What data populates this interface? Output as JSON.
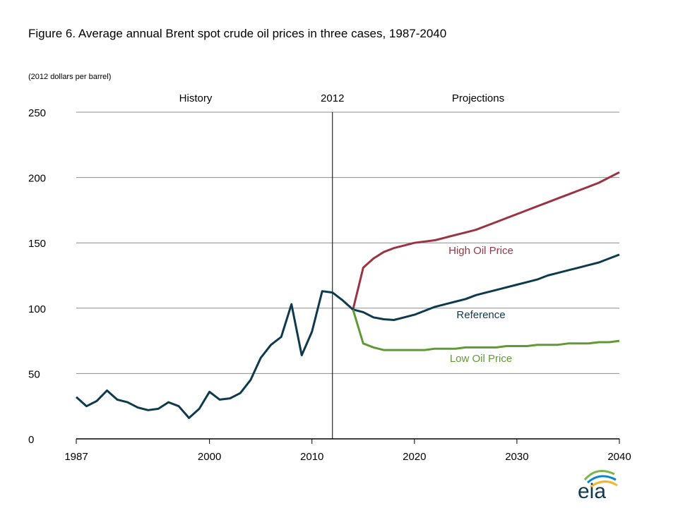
{
  "chart_data": {
    "type": "line",
    "title": "Figure 6. Average annual  Brent spot crude oil prices in three cases, 1987-2040",
    "ylabel": "(2012 dollars per barrel)",
    "xlabel": "",
    "xlim": [
      1987,
      2040
    ],
    "ylim": [
      0,
      250
    ],
    "yticks": [
      0,
      50,
      100,
      150,
      200,
      250
    ],
    "xticks": [
      1987,
      2000,
      2010,
      2020,
      2030,
      2040
    ],
    "grid": true,
    "annotations": {
      "history": "History",
      "divider": "2012",
      "projections": "Projections",
      "divider_year": 2012
    },
    "colors": {
      "reference": "#0e3a4e",
      "high": "#9b3442",
      "low": "#5f9a35"
    },
    "history": {
      "x": [
        1987,
        1988,
        1989,
        1990,
        1991,
        1992,
        1993,
        1994,
        1995,
        1996,
        1997,
        1998,
        1999,
        2000,
        2001,
        2002,
        2003,
        2004,
        2005,
        2006,
        2007,
        2008,
        2009,
        2010,
        2011,
        2012,
        2013,
        2014
      ],
      "y": [
        32,
        25,
        29,
        37,
        30,
        28,
        24,
        22,
        23,
        28,
        25,
        16,
        23,
        36,
        30,
        31,
        35,
        45,
        62,
        72,
        78,
        103,
        64,
        82,
        113,
        112,
        106,
        99
      ]
    },
    "series": [
      {
        "name": "High Oil Price",
        "key": "high",
        "x": [
          2014,
          2015,
          2016,
          2017,
          2018,
          2019,
          2020,
          2021,
          2022,
          2023,
          2024,
          2025,
          2026,
          2027,
          2028,
          2029,
          2030,
          2031,
          2032,
          2033,
          2034,
          2035,
          2036,
          2037,
          2038,
          2039,
          2040
        ],
        "y": [
          99,
          131,
          138,
          143,
          146,
          148,
          150,
          151,
          152,
          154,
          156,
          158,
          160,
          163,
          166,
          169,
          172,
          175,
          178,
          181,
          184,
          187,
          190,
          193,
          196,
          200,
          204
        ]
      },
      {
        "name": "Reference",
        "key": "reference",
        "x": [
          2014,
          2015,
          2016,
          2017,
          2018,
          2019,
          2020,
          2021,
          2022,
          2023,
          2024,
          2025,
          2026,
          2027,
          2028,
          2029,
          2030,
          2031,
          2032,
          2033,
          2034,
          2035,
          2036,
          2037,
          2038,
          2039,
          2040
        ],
        "y": [
          99,
          97,
          93,
          91.5,
          91,
          93,
          95,
          98,
          101,
          103,
          105,
          107,
          110,
          112,
          114,
          116,
          118,
          120,
          122,
          125,
          127,
          129,
          131,
          133,
          135,
          138,
          141
        ]
      },
      {
        "name": "Low Oil Price",
        "key": "low",
        "x": [
          2014,
          2015,
          2016,
          2017,
          2018,
          2019,
          2020,
          2021,
          2022,
          2023,
          2024,
          2025,
          2026,
          2027,
          2028,
          2029,
          2030,
          2031,
          2032,
          2033,
          2034,
          2035,
          2036,
          2037,
          2038,
          2039,
          2040
        ],
        "y": [
          99,
          73,
          70,
          68,
          68,
          68,
          68,
          68,
          69,
          69,
          69,
          70,
          70,
          70,
          70,
          71,
          71,
          71,
          72,
          72,
          72,
          73,
          73,
          73,
          74,
          74,
          75
        ]
      }
    ]
  },
  "logo": {
    "text": "eia"
  }
}
